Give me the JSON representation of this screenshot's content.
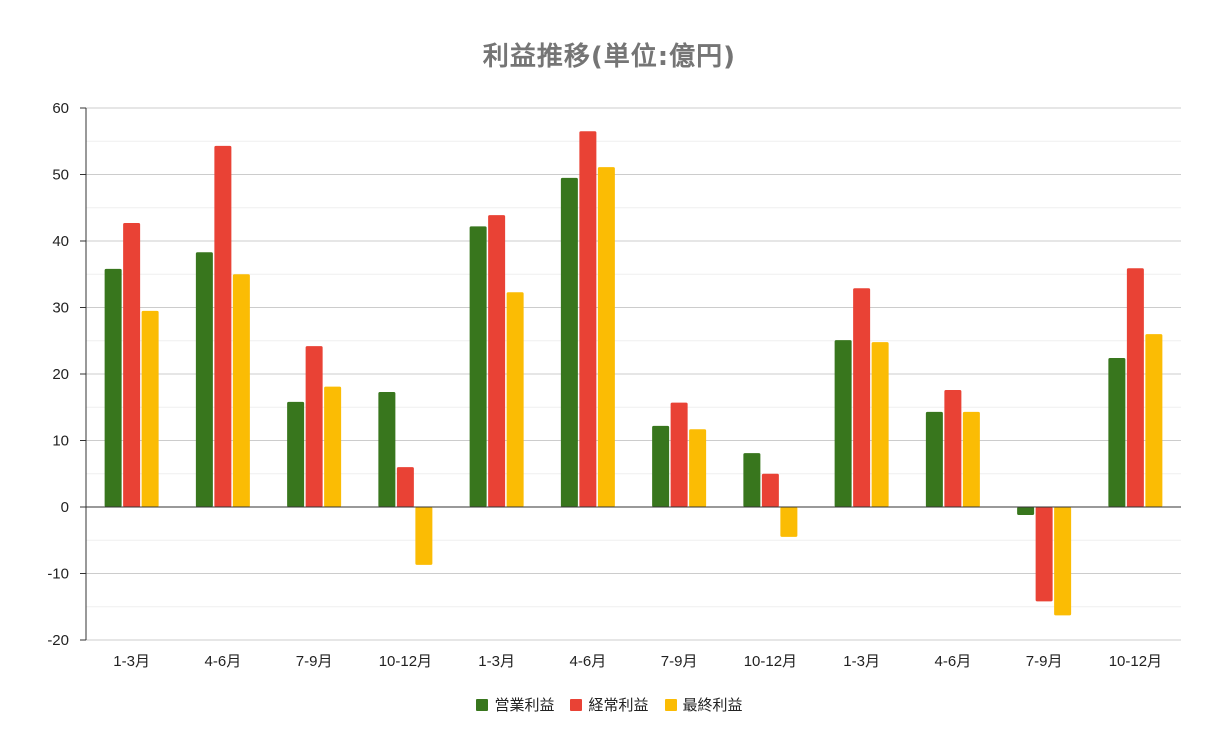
{
  "chart_data": {
    "type": "bar",
    "title": "利益推移(単位:億円)",
    "categories": [
      "1-3月",
      "4-6月",
      "7-9月",
      "10-12月",
      "1-3月",
      "4-6月",
      "7-9月",
      "10-12月",
      "1-3月",
      "4-6月",
      "7-9月",
      "10-12月"
    ],
    "series": [
      {
        "name": "営業利益",
        "color": "#38761d",
        "values": [
          35.8,
          38.3,
          15.8,
          17.3,
          42.2,
          49.5,
          12.2,
          8.1,
          25.1,
          14.3,
          -1.2,
          22.4
        ]
      },
      {
        "name": "経常利益",
        "color": "#e94235",
        "values": [
          42.7,
          54.3,
          24.2,
          6.0,
          43.9,
          56.5,
          15.7,
          5.0,
          32.9,
          17.6,
          -14.2,
          35.9
        ]
      },
      {
        "name": "最終利益",
        "color": "#fbbc04",
        "values": [
          29.5,
          35.0,
          18.1,
          -8.7,
          32.3,
          51.1,
          11.7,
          -4.5,
          24.8,
          14.3,
          -16.3,
          26.0
        ]
      }
    ],
    "ylim": [
      -20,
      60
    ],
    "yticks": [
      -20,
      -10,
      0,
      10,
      20,
      30,
      40,
      50,
      60
    ],
    "xlabel": "",
    "ylabel": "",
    "grid": true,
    "legend": "bottom"
  }
}
